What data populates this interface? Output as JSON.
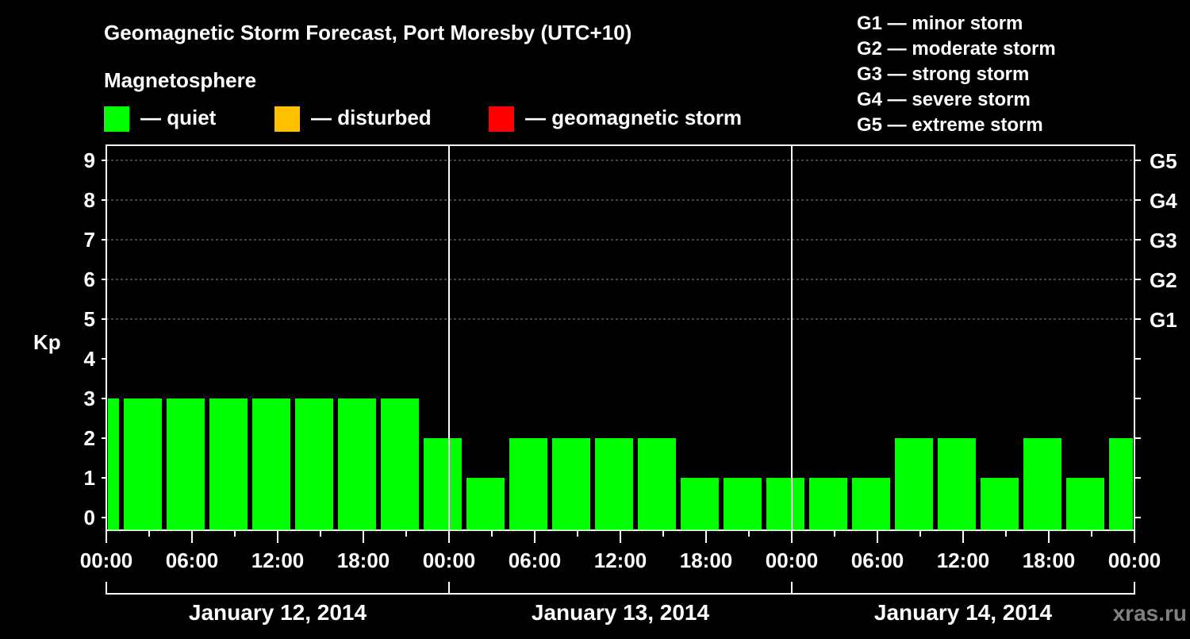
{
  "chart_data": {
    "type": "bar",
    "title": "Geomagnetic Storm Forecast, Port Moresby (UTC+10)",
    "legend_title": "Magnetosphere",
    "legend": [
      {
        "label": "— quiet",
        "color": "#00ff00"
      },
      {
        "label": "— disturbed",
        "color": "#ffc000"
      },
      {
        "label": "— geomagnetic storm",
        "color": "#ff0000"
      }
    ],
    "storm_scale": [
      "G1 — minor storm",
      "G2 — moderate storm",
      "G3 — strong storm",
      "G4 — severe storm",
      "G5 — extreme storm"
    ],
    "ylabel": "Kp",
    "ylim": [
      0,
      9
    ],
    "yticks": [
      "0",
      "1",
      "2",
      "3",
      "4",
      "5",
      "6",
      "7",
      "8",
      "9"
    ],
    "right_ticks": [
      {
        "kp": 5,
        "label": "G1"
      },
      {
        "kp": 6,
        "label": "G2"
      },
      {
        "kp": 7,
        "label": "G3"
      },
      {
        "kp": 8,
        "label": "G4"
      },
      {
        "kp": 9,
        "label": "G5"
      }
    ],
    "xticks": [
      "00:00",
      "06:00",
      "12:00",
      "18:00",
      "00:00",
      "06:00",
      "12:00",
      "18:00",
      "00:00",
      "06:00",
      "12:00",
      "18:00",
      "00:00"
    ],
    "days": [
      "January 12, 2014",
      "January 13, 2014",
      "January 14, 2014"
    ],
    "bin_hours": 3,
    "first_bin_start_hour": -2,
    "values": [
      3,
      3,
      3,
      3,
      3,
      3,
      3,
      3,
      2,
      1,
      2,
      2,
      2,
      2,
      1,
      1,
      1,
      1,
      1,
      2,
      2,
      1,
      2,
      1,
      2
    ],
    "bar_color": "#00ff00",
    "grid": true,
    "watermark": "xras.ru"
  }
}
